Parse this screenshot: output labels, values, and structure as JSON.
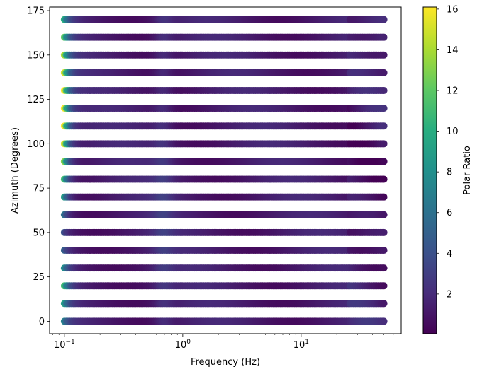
{
  "chart_data": {
    "type": "scatter",
    "x_scale": "log",
    "x_range_hz": [
      0.1,
      50
    ],
    "xlim": [
      0.075,
      70
    ],
    "xlabel": "Frequency (Hz)",
    "ylabel": "Azimuth (Degrees)",
    "ylim": [
      -7,
      177
    ],
    "x_ticks": [
      {
        "value": 0.1,
        "base": "10",
        "exp": "−1"
      },
      {
        "value": 1,
        "base": "10",
        "exp": "0"
      },
      {
        "value": 10,
        "base": "10",
        "exp": "1"
      }
    ],
    "y_ticks": [
      0,
      25,
      50,
      75,
      100,
      125,
      150,
      175
    ],
    "azimuths": [
      0,
      10,
      20,
      30,
      40,
      50,
      60,
      70,
      80,
      90,
      100,
      110,
      120,
      130,
      140,
      150,
      160,
      170
    ],
    "low_freq_polar_ratio": [
      7,
      9,
      11,
      8,
      5,
      4,
      6,
      9,
      11,
      13,
      15,
      16,
      16,
      16,
      15,
      14,
      12,
      10
    ],
    "colorbar": {
      "label": "Polar Ratio",
      "min": 0.05,
      "max": 16.1,
      "ticks": [
        2,
        4,
        6,
        8,
        10,
        12,
        14,
        16
      ],
      "colormap": "viridis"
    },
    "grid": false,
    "legend": "none"
  }
}
